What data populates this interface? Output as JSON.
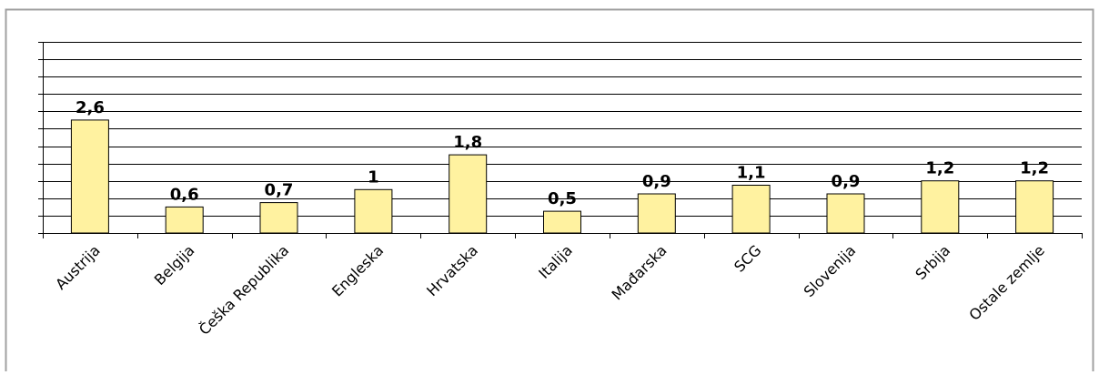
{
  "chart_data": {
    "type": "bar",
    "title": "",
    "xlabel": "",
    "ylabel": "",
    "ylim": [
      0,
      4.4
    ],
    "grid": true,
    "legend": "none",
    "categories": [
      "Austrija",
      "Belgija",
      "Češka Republika",
      "Engleska",
      "Hrvatska",
      "Italija",
      "Mađarska",
      "SCG",
      "Slovenija",
      "Srbija",
      "Ostale zemlje"
    ],
    "values": [
      2.6,
      0.6,
      0.7,
      1,
      1.8,
      0.5,
      0.9,
      1.1,
      0.9,
      1.2,
      1.2
    ],
    "value_labels": [
      "2,6",
      "0,6",
      "0,7",
      "1",
      "1,8",
      "0,5",
      "0,9",
      "1,1",
      "0,9",
      "1,2",
      "1,2"
    ],
    "colors": {
      "bar_fill": "#fff2a0",
      "bar_stroke": "#000000",
      "grid": "#000000",
      "frame": "#a0a0a0"
    }
  }
}
